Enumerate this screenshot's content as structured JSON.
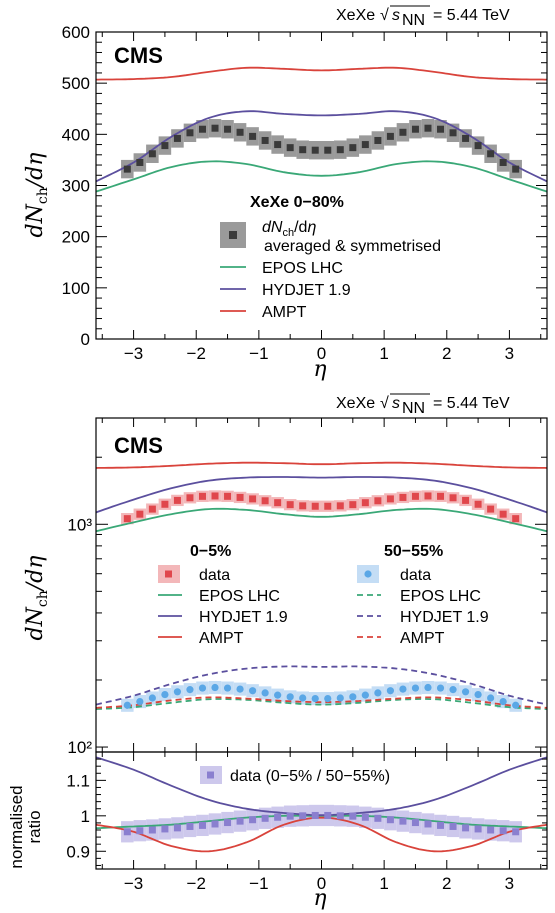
{
  "colors": {
    "epos": "#3aa877",
    "hydjet": "#5b4f9e",
    "ampt": "#d9433b",
    "data_top": "#3a3a3a",
    "data_top_band": "#9a9a9a",
    "data_c0": "#e0474c",
    "data_c0_band": "#f3b7b9",
    "data_c50": "#5aa7e6",
    "data_c50_band": "#c4ddf5",
    "ratio": "#8a7fcf",
    "ratio_band": "#cdc8ec"
  },
  "energy_label": {
    "prefix": "XeXe",
    "sqrt": "√",
    "s": "s",
    "sub": "NN",
    "suffix": "= 5.44 TeV"
  },
  "cms_label": "CMS",
  "x_axis": {
    "ticks": [
      "−3",
      "−2",
      "−1",
      "0",
      "1",
      "2",
      "3"
    ],
    "label": "η"
  },
  "chart_data": [
    {
      "type": "line",
      "title": "",
      "xlabel": "η",
      "ylabel": "dNch/dη",
      "xlim": [
        -3.6,
        3.6
      ],
      "ylim": [
        0,
        600
      ],
      "y_ticks": [
        "0",
        "100",
        "200",
        "300",
        "400",
        "500",
        "600"
      ],
      "legend": {
        "header": "XeXe 0−80%",
        "data_label": "dNch/dη",
        "data_sublabel": "averaged & symmetrised",
        "entries": [
          "EPOS LHC",
          "HYDJET 1.9",
          "AMPT"
        ]
      },
      "data": {
        "x": [
          -3.1,
          -2.9,
          -2.7,
          -2.5,
          -2.3,
          -2.1,
          -1.9,
          -1.7,
          -1.5,
          -1.3,
          -1.1,
          -0.9,
          -0.7,
          -0.5,
          -0.3,
          -0.1,
          0.1,
          0.3,
          0.5,
          0.7,
          0.9,
          1.1,
          1.3,
          1.5,
          1.7,
          1.9,
          2.1,
          2.3,
          2.5,
          2.7,
          2.9,
          3.1
        ],
        "y": [
          332,
          345,
          362,
          378,
          392,
          403,
          410,
          412,
          410,
          404,
          396,
          388,
          380,
          374,
          370,
          369,
          369,
          370,
          374,
          380,
          388,
          396,
          404,
          410,
          412,
          410,
          403,
          392,
          378,
          362,
          345,
          332
        ],
        "err": 18
      },
      "series": [
        {
          "name": "EPOS LHC",
          "x": [
            -3.6,
            -3.0,
            -2.4,
            -1.8,
            -1.2,
            -0.6,
            0.0,
            0.6,
            1.2,
            1.8,
            2.4,
            3.0,
            3.6
          ],
          "y": [
            288,
            312,
            336,
            347,
            342,
            326,
            319,
            326,
            342,
            347,
            336,
            312,
            288
          ]
        },
        {
          "name": "HYDJET 1.9",
          "x": [
            -3.6,
            -3.0,
            -2.4,
            -1.8,
            -1.2,
            -0.6,
            0.0,
            0.6,
            1.2,
            1.8,
            2.4,
            3.0,
            3.6
          ],
          "y": [
            308,
            345,
            395,
            432,
            445,
            440,
            437,
            440,
            445,
            432,
            395,
            345,
            308
          ]
        },
        {
          "name": "AMPT",
          "x": [
            -3.6,
            -3.0,
            -2.4,
            -1.8,
            -1.2,
            -0.6,
            0.0,
            0.6,
            1.2,
            1.8,
            2.4,
            3.0,
            3.6
          ],
          "y": [
            507,
            508,
            512,
            522,
            530,
            528,
            525,
            528,
            530,
            522,
            512,
            508,
            507
          ]
        }
      ]
    },
    {
      "type": "line",
      "title": "",
      "xlabel": "",
      "ylabel": "dNch/dη",
      "scale": "log",
      "xlim": [
        -3.6,
        3.6
      ],
      "ylim": [
        95,
        3000
      ],
      "y_ticks": [
        "10²",
        "10³"
      ],
      "legend": {
        "header_a": "0−5%",
        "header_b": "50−55%",
        "entries": [
          "data",
          "EPOS LHC",
          "HYDJET 1.9",
          "AMPT"
        ]
      },
      "data_central": {
        "x": [
          -3.1,
          -2.9,
          -2.7,
          -2.5,
          -2.3,
          -2.1,
          -1.9,
          -1.7,
          -1.5,
          -1.3,
          -1.1,
          -0.9,
          -0.7,
          -0.5,
          -0.3,
          -0.1,
          0.1,
          0.3,
          0.5,
          0.7,
          0.9,
          1.1,
          1.3,
          1.5,
          1.7,
          1.9,
          2.1,
          2.3,
          2.5,
          2.7,
          2.9,
          3.1
        ],
        "y": [
          1060,
          1110,
          1170,
          1230,
          1280,
          1315,
          1335,
          1340,
          1335,
          1320,
          1300,
          1275,
          1250,
          1225,
          1210,
          1205,
          1205,
          1210,
          1225,
          1250,
          1275,
          1300,
          1320,
          1335,
          1340,
          1335,
          1315,
          1280,
          1230,
          1170,
          1110,
          1060
        ]
      },
      "data_peripheral": {
        "x": [
          -3.1,
          -2.9,
          -2.7,
          -2.5,
          -2.3,
          -2.1,
          -1.9,
          -1.7,
          -1.5,
          -1.3,
          -1.1,
          -0.9,
          -0.7,
          -0.5,
          -0.3,
          -0.1,
          0.1,
          0.3,
          0.5,
          0.7,
          0.9,
          1.1,
          1.3,
          1.5,
          1.7,
          1.9,
          2.1,
          2.3,
          2.5,
          2.7,
          2.9,
          3.1
        ],
        "y": [
          154,
          160,
          166,
          172,
          177,
          181,
          184,
          185,
          184,
          182,
          179,
          175,
          171,
          168,
          166,
          165,
          165,
          166,
          168,
          171,
          175,
          179,
          182,
          184,
          185,
          184,
          181,
          177,
          172,
          166,
          160,
          154
        ]
      },
      "series": [
        {
          "name": "EPOS LHC",
          "centrality": "0−5%",
          "x": [
            -3.6,
            -3.0,
            -2.4,
            -1.8,
            -1.2,
            -0.6,
            0.0,
            0.6,
            1.2,
            1.8,
            2.4,
            3.0,
            3.6
          ],
          "y": [
            930,
            1020,
            1110,
            1170,
            1160,
            1110,
            1080,
            1110,
            1160,
            1170,
            1110,
            1020,
            930
          ]
        },
        {
          "name": "HYDJET 1.9",
          "centrality": "0−5%",
          "x": [
            -3.6,
            -3.0,
            -2.4,
            -1.8,
            -1.2,
            -0.6,
            0.0,
            0.6,
            1.2,
            1.8,
            2.4,
            3.0,
            3.6
          ],
          "y": [
            1130,
            1290,
            1450,
            1570,
            1620,
            1630,
            1620,
            1630,
            1620,
            1570,
            1450,
            1290,
            1130
          ]
        },
        {
          "name": "AMPT",
          "centrality": "0−5%",
          "x": [
            -3.6,
            -3.0,
            -2.4,
            -1.8,
            -1.2,
            -0.6,
            0.0,
            0.6,
            1.2,
            1.8,
            2.4,
            3.0,
            3.6
          ],
          "y": [
            1790,
            1800,
            1830,
            1870,
            1890,
            1880,
            1860,
            1880,
            1890,
            1870,
            1830,
            1800,
            1790
          ]
        },
        {
          "name": "EPOS LHC",
          "centrality": "50−55%",
          "x": [
            -3.6,
            -3.0,
            -2.4,
            -1.8,
            -1.2,
            -0.6,
            0.0,
            0.6,
            1.2,
            1.8,
            2.4,
            3.0,
            3.6
          ],
          "y": [
            148,
            151,
            158,
            164,
            163,
            158,
            155,
            158,
            163,
            164,
            158,
            151,
            148
          ]
        },
        {
          "name": "HYDJET 1.9",
          "centrality": "50−55%",
          "x": [
            -3.6,
            -3.0,
            -2.4,
            -1.8,
            -1.2,
            -0.6,
            0.0,
            0.6,
            1.2,
            1.8,
            2.4,
            3.0,
            3.6
          ],
          "y": [
            155,
            170,
            192,
            212,
            225,
            230,
            229,
            230,
            225,
            212,
            192,
            170,
            155
          ]
        },
        {
          "name": "AMPT",
          "centrality": "50−55%",
          "x": [
            -3.6,
            -3.0,
            -2.4,
            -1.8,
            -1.2,
            -0.6,
            0.0,
            0.6,
            1.2,
            1.8,
            2.4,
            3.0,
            3.6
          ],
          "y": [
            150,
            154,
            162,
            167,
            165,
            161,
            159,
            161,
            165,
            167,
            162,
            154,
            150
          ]
        }
      ]
    },
    {
      "type": "line",
      "title": "",
      "xlabel": "η",
      "ylabel": "normalised ratio",
      "xlim": [
        -3.6,
        3.6
      ],
      "ylim": [
        0.85,
        1.18
      ],
      "y_ticks": [
        "0.9",
        "1",
        "1.1"
      ],
      "legend": {
        "entries": [
          "data (0−5% / 50−55%)"
        ]
      },
      "data": {
        "x": [
          -3.1,
          -2.9,
          -2.7,
          -2.5,
          -2.3,
          -2.1,
          -1.9,
          -1.7,
          -1.5,
          -1.3,
          -1.1,
          -0.9,
          -0.7,
          -0.5,
          -0.3,
          -0.1,
          0.1,
          0.3,
          0.5,
          0.7,
          0.9,
          1.1,
          1.3,
          1.5,
          1.7,
          1.9,
          2.1,
          2.3,
          2.5,
          2.7,
          2.9,
          3.1
        ],
        "y": [
          0.955,
          0.958,
          0.96,
          0.963,
          0.966,
          0.97,
          0.973,
          0.977,
          0.981,
          0.985,
          0.989,
          0.993,
          0.996,
          0.999,
          1.0,
          1.001,
          1.001,
          1.0,
          0.999,
          0.996,
          0.993,
          0.989,
          0.985,
          0.981,
          0.977,
          0.973,
          0.97,
          0.966,
          0.963,
          0.96,
          0.958,
          0.955
        ],
        "err": 0.03
      },
      "series": [
        {
          "name": "EPOS LHC",
          "x": [
            -3.6,
            -3.0,
            -2.4,
            -1.8,
            -1.2,
            -0.6,
            0.0,
            0.6,
            1.2,
            1.8,
            2.4,
            3.0,
            3.6
          ],
          "y": [
            0.965,
            0.97,
            0.975,
            0.985,
            0.995,
            1.0,
            1.0,
            1.0,
            0.995,
            0.985,
            0.975,
            0.97,
            0.965
          ]
        },
        {
          "name": "HYDJET 1.9",
          "x": [
            -3.6,
            -3.0,
            -2.4,
            -1.8,
            -1.2,
            -0.6,
            0.0,
            0.6,
            1.2,
            1.8,
            2.4,
            3.0,
            3.6
          ],
          "y": [
            1.165,
            1.13,
            1.085,
            1.045,
            1.02,
            1.008,
            1.002,
            1.008,
            1.02,
            1.045,
            1.085,
            1.13,
            1.165
          ]
        },
        {
          "name": "AMPT",
          "x": [
            -3.6,
            -3.0,
            -2.4,
            -1.8,
            -1.2,
            -0.6,
            0.0,
            0.6,
            1.2,
            1.8,
            2.4,
            3.0,
            3.6
          ],
          "y": [
            0.975,
            0.955,
            0.915,
            0.9,
            0.925,
            0.975,
            0.995,
            0.975,
            0.925,
            0.9,
            0.915,
            0.955,
            0.975
          ]
        }
      ]
    }
  ]
}
